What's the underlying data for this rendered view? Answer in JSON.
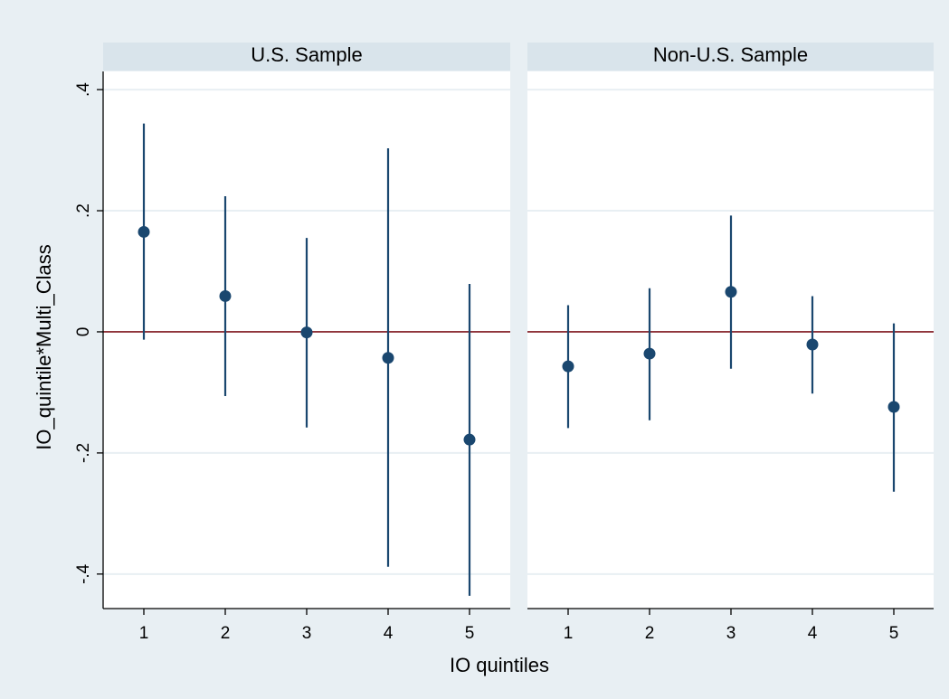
{
  "chart_data": [
    {
      "type": "scatter",
      "title": "U.S. Sample",
      "xlabel": "IO quintiles",
      "ylabel": "IO_quintile*Multi_Class",
      "x_ticks": [
        "1",
        "2",
        "3",
        "4",
        "5"
      ],
      "y_ticks": [
        ".4",
        ".2",
        "0",
        "-.2",
        "-.4"
      ],
      "ylim": [
        -0.457,
        0.43
      ],
      "reference_line_y": 0,
      "grid": true,
      "points": [
        {
          "x": 1,
          "y": 0.165,
          "ci_low": -0.013,
          "ci_high": 0.344
        },
        {
          "x": 2,
          "y": 0.059,
          "ci_low": -0.106,
          "ci_high": 0.224
        },
        {
          "x": 3,
          "y": -0.001,
          "ci_low": -0.158,
          "ci_high": 0.155
        },
        {
          "x": 4,
          "y": -0.043,
          "ci_low": -0.388,
          "ci_high": 0.303
        },
        {
          "x": 5,
          "y": -0.178,
          "ci_low": -0.436,
          "ci_high": 0.079
        }
      ]
    },
    {
      "type": "scatter",
      "title": "Non-U.S. Sample",
      "xlabel": "IO quintiles",
      "ylabel": "IO_quintile*Multi_Class",
      "x_ticks": [
        "1",
        "2",
        "3",
        "4",
        "5"
      ],
      "y_ticks": [
        ".4",
        ".2",
        "0",
        "-.2",
        "-.4"
      ],
      "ylim": [
        -0.457,
        0.43
      ],
      "reference_line_y": 0,
      "grid": true,
      "points": [
        {
          "x": 1,
          "y": -0.057,
          "ci_low": -0.159,
          "ci_high": 0.044
        },
        {
          "x": 2,
          "y": -0.036,
          "ci_low": -0.146,
          "ci_high": 0.072
        },
        {
          "x": 3,
          "y": 0.066,
          "ci_low": -0.061,
          "ci_high": 0.192
        },
        {
          "x": 4,
          "y": -0.021,
          "ci_low": -0.102,
          "ci_high": 0.059
        },
        {
          "x": 5,
          "y": -0.124,
          "ci_low": -0.264,
          "ci_high": 0.014
        }
      ]
    }
  ],
  "colors": {
    "outer_background": "#e8eff3",
    "strip_background": "#d9e4eb",
    "plot_background": "#ffffff",
    "grid": "#e8eff3",
    "marker": "#1a476f",
    "reference_line": "#90353b"
  }
}
